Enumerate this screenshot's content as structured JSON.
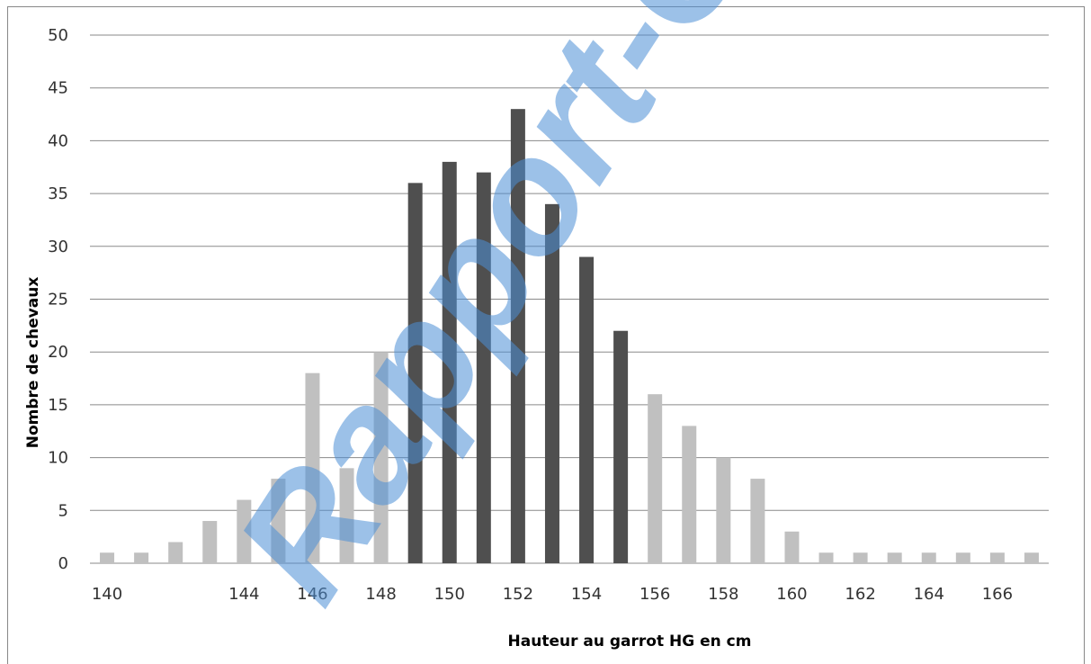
{
  "caption": "",
  "chart_data": {
    "type": "bar",
    "xlabel": "Hauteur au garrot HG en cm",
    "ylabel": "Nombre de chevaux",
    "ylim": [
      0,
      50
    ],
    "yticks": [
      0,
      5,
      10,
      15,
      20,
      25,
      30,
      35,
      40,
      45,
      50
    ],
    "xticks": [
      140,
      144,
      146,
      148,
      150,
      152,
      154,
      156,
      158,
      160,
      162,
      164,
      166
    ],
    "grid": true,
    "categories": [
      140,
      141,
      142,
      143,
      144,
      145,
      146,
      147,
      148,
      149,
      150,
      151,
      152,
      153,
      154,
      155,
      156,
      157,
      158,
      159,
      160,
      161,
      162,
      163,
      164,
      165,
      166,
      167
    ],
    "values": [
      1,
      1,
      2,
      4,
      6,
      8,
      18,
      9,
      20,
      36,
      38,
      37,
      43,
      34,
      29,
      22,
      16,
      13,
      10,
      8,
      3,
      1,
      1,
      1,
      1,
      1,
      1,
      1
    ],
    "colors": {
      "light": "#c0c0c0",
      "dark": "#4f4f4f"
    },
    "highlight_range": [
      149,
      155
    ]
  },
  "watermark": {
    "text": "Rapport-Gratuit"
  }
}
